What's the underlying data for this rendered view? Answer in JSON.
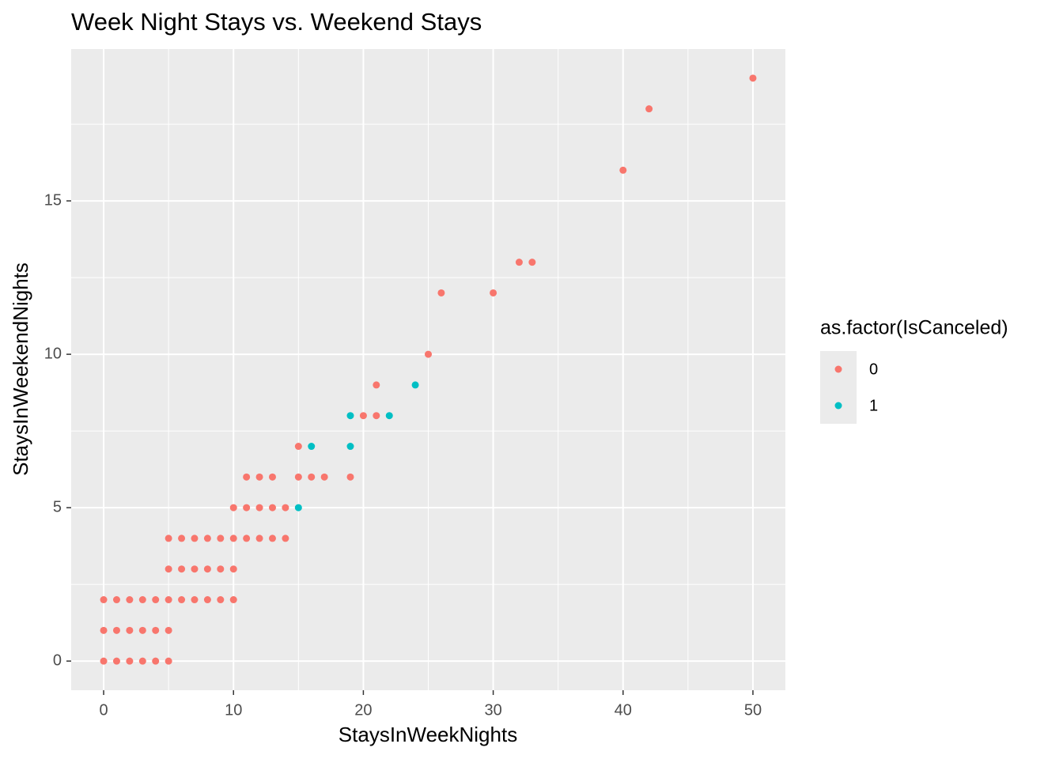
{
  "chart_data": {
    "type": "scatter",
    "title": "Week Night Stays vs. Weekend Stays",
    "x_label": "StaysInWeekNights",
    "y_label": "StaysInWeekendNights",
    "legend_title": "as.factor(IsCanceled)",
    "legend_position": "right",
    "grid": true,
    "xlim": [
      -2.5,
      52.5
    ],
    "ylim": [
      -0.95,
      19.95
    ],
    "xticks": [
      0,
      10,
      20,
      30,
      40,
      50
    ],
    "yticks": [
      0,
      5,
      10,
      15
    ],
    "x_minor_grid": [
      5,
      15,
      25,
      35,
      45
    ],
    "y_minor_grid": [
      2.5,
      7.5,
      12.5,
      17.5
    ],
    "series": [
      {
        "name": "0",
        "color": "#F8766D",
        "x": [
          0,
          1,
          2,
          3,
          4,
          5,
          0,
          1,
          2,
          3,
          4,
          5,
          0,
          1,
          2,
          3,
          4,
          5,
          6,
          7,
          8,
          9,
          10,
          5,
          6,
          7,
          8,
          9,
          10,
          5,
          6,
          7,
          8,
          9,
          10,
          11,
          12,
          13,
          14,
          10,
          11,
          12,
          13,
          14,
          11,
          12,
          13,
          15,
          16,
          17,
          19,
          15,
          20,
          21,
          21,
          25,
          26,
          30,
          32,
          33,
          40,
          42,
          50
        ],
        "y": [
          0,
          0,
          0,
          0,
          0,
          0,
          1,
          1,
          1,
          1,
          1,
          1,
          2,
          2,
          2,
          2,
          2,
          2,
          2,
          2,
          2,
          2,
          2,
          3,
          3,
          3,
          3,
          3,
          3,
          4,
          4,
          4,
          4,
          4,
          4,
          4,
          4,
          4,
          4,
          5,
          5,
          5,
          5,
          5,
          6,
          6,
          6,
          6,
          6,
          6,
          6,
          7,
          8,
          8,
          9,
          10,
          12,
          12,
          13,
          13,
          16,
          18,
          19
        ]
      },
      {
        "name": "1",
        "color": "#00BFC4",
        "x": [
          15,
          16,
          19,
          19,
          22,
          24
        ],
        "y": [
          5,
          7,
          7,
          8,
          8,
          9
        ]
      }
    ]
  }
}
